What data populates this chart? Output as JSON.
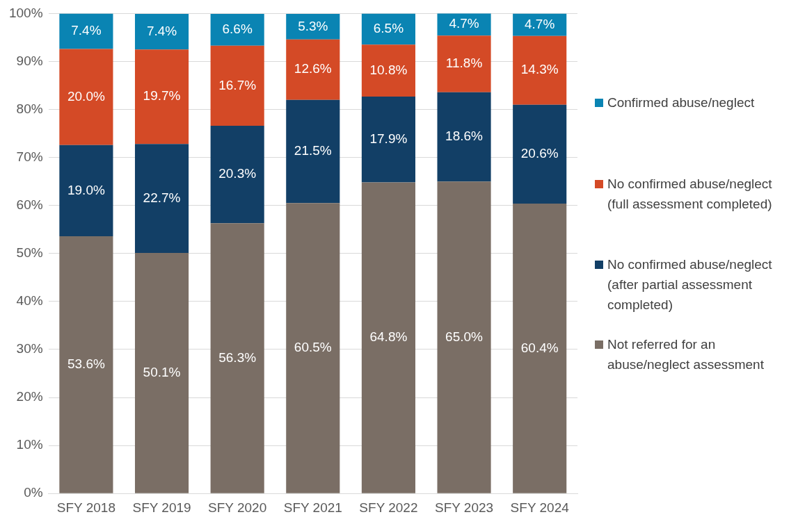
{
  "chart_data": {
    "type": "bar",
    "stacked": true,
    "categories": [
      "SFY 2018",
      "SFY 2019",
      "SFY 2020",
      "SFY 2021",
      "SFY 2022",
      "SFY 2023",
      "SFY 2024"
    ],
    "series": [
      {
        "name": "Not referred for an abuse/neglect assessment",
        "color": "#7a6e65",
        "values": [
          53.6,
          50.1,
          56.3,
          60.5,
          64.8,
          65.0,
          60.4
        ],
        "value_labels": [
          "53.6%",
          "50.1%",
          "56.3%",
          "60.5%",
          "64.8%",
          "65.0%",
          "60.4%"
        ]
      },
      {
        "name": "No confirmed abuse/neglect (after partial assessment completed)",
        "color": "#123f66",
        "values": [
          19.0,
          22.7,
          20.3,
          21.5,
          17.9,
          18.6,
          20.6
        ],
        "value_labels": [
          "19.0%",
          "22.7%",
          "20.3%",
          "21.5%",
          "17.9%",
          "18.6%",
          "20.6%"
        ]
      },
      {
        "name": "No confirmed abuse/neglect (full assessment completed)",
        "color": "#d44a26",
        "values": [
          20.0,
          19.7,
          16.7,
          12.6,
          10.8,
          11.8,
          14.3
        ],
        "value_labels": [
          "20.0%",
          "19.7%",
          "16.7%",
          "12.6%",
          "10.8%",
          "11.8%",
          "14.3%"
        ]
      },
      {
        "name": "Confirmed abuse/neglect",
        "color": "#0a84b3",
        "values": [
          7.4,
          7.4,
          6.6,
          5.3,
          6.5,
          4.7,
          4.7
        ],
        "value_labels": [
          "7.4%",
          "7.4%",
          "6.6%",
          "5.3%",
          "6.5%",
          "4.7%",
          "4.7%"
        ]
      }
    ],
    "ylim": [
      0,
      100
    ],
    "yticks": [
      {
        "value": 0,
        "label": "0%"
      },
      {
        "value": 10,
        "label": "10%"
      },
      {
        "value": 20,
        "label": "20%"
      },
      {
        "value": 30,
        "label": "30%"
      },
      {
        "value": 40,
        "label": "40%"
      },
      {
        "value": 50,
        "label": "50%"
      },
      {
        "value": 60,
        "label": "60%"
      },
      {
        "value": 70,
        "label": "70%"
      },
      {
        "value": 80,
        "label": "80%"
      },
      {
        "value": 90,
        "label": "90%"
      },
      {
        "value": 100,
        "label": "100%"
      }
    ],
    "grid": "y",
    "legend": "right"
  }
}
